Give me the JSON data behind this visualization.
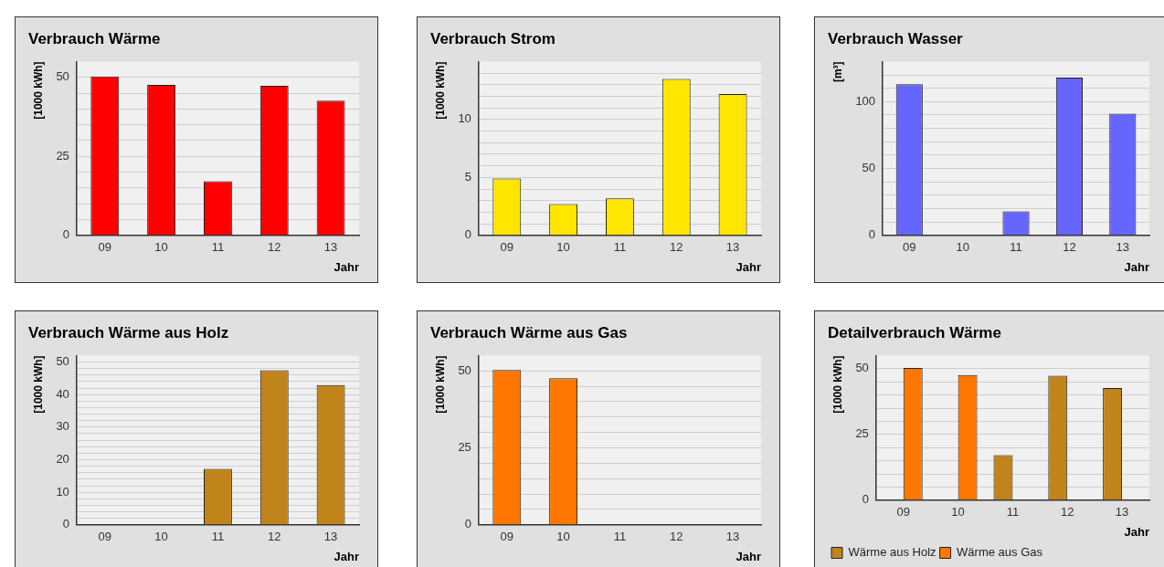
{
  "chart_data": [
    {
      "type": "bar",
      "title": "Verbrauch Wärme",
      "xlabel": "Jahr",
      "ylabel": "[1000 kWh]",
      "categories": [
        "09",
        "10",
        "11",
        "12",
        "13"
      ],
      "values": [
        50.3,
        47.6,
        17.1,
        47.3,
        42.6
      ],
      "color": "#ff0000",
      "ylim": [
        0,
        55
      ],
      "yticks": [
        0,
        {
          "value": 5,
          "label": null
        },
        {
          "value": 10,
          "label": null
        },
        {
          "value": 15,
          "label": null
        },
        {
          "value": 20,
          "label": null
        },
        25,
        {
          "value": 30,
          "label": null
        },
        {
          "value": 35,
          "label": null
        },
        {
          "value": 40,
          "label": null
        },
        {
          "value": 45,
          "label": null
        },
        50
      ],
      "grid": "y"
    },
    {
      "type": "bar",
      "title": "Verbrauch Strom",
      "xlabel": "Jahr",
      "ylabel": "[1000 kWh]",
      "categories": [
        "09",
        "10",
        "11",
        "12",
        "13"
      ],
      "values": [
        4.9,
        2.7,
        3.2,
        13.5,
        12.2
      ],
      "color": "#ffe600",
      "ylim": [
        0,
        15
      ],
      "yticks": [
        0,
        {
          "value": 1,
          "label": null
        },
        {
          "value": 2,
          "label": null
        },
        {
          "value": 3,
          "label": null
        },
        {
          "value": 4,
          "label": null
        },
        5,
        {
          "value": 6,
          "label": null
        },
        {
          "value": 7,
          "label": null
        },
        {
          "value": 8,
          "label": null
        },
        {
          "value": 9,
          "label": null
        },
        10,
        {
          "value": 11,
          "label": null
        },
        {
          "value": 12,
          "label": null
        },
        {
          "value": 13,
          "label": null
        },
        {
          "value": 14,
          "label": null
        }
      ],
      "grid": "y"
    },
    {
      "type": "bar",
      "title": "Verbrauch Wasser",
      "xlabel": "Jahr",
      "ylabel": "[m³]",
      "categories": [
        "09",
        "10",
        "11",
        "12",
        "13"
      ],
      "values": [
        113,
        null,
        18,
        118,
        91
      ],
      "color": "#6666ff",
      "ylim": [
        0,
        130
      ],
      "yticks": [
        0,
        {
          "value": 10,
          "label": null
        },
        {
          "value": 20,
          "label": null
        },
        {
          "value": 30,
          "label": null
        },
        {
          "value": 40,
          "label": null
        },
        50,
        {
          "value": 60,
          "label": null
        },
        {
          "value": 70,
          "label": null
        },
        {
          "value": 80,
          "label": null
        },
        {
          "value": 90,
          "label": null
        },
        100,
        {
          "value": 110,
          "label": null
        },
        {
          "value": 120,
          "label": null
        }
      ],
      "grid": "y"
    },
    {
      "type": "bar",
      "title": "Verbrauch Wärme aus Holz",
      "xlabel": "Jahr",
      "ylabel": "[1000 kWh]",
      "categories": [
        "09",
        "10",
        "11",
        "12",
        "13"
      ],
      "values": [
        null,
        null,
        17.2,
        47.5,
        42.9
      ],
      "color": "#c0841a",
      "ylim": [
        0,
        52
      ],
      "yticks": [
        0,
        {
          "value": 2,
          "label": null
        },
        {
          "value": 4,
          "label": null
        },
        {
          "value": 6,
          "label": null
        },
        {
          "value": 8,
          "label": null
        },
        10,
        {
          "value": 12,
          "label": null
        },
        {
          "value": 14,
          "label": null
        },
        {
          "value": 16,
          "label": null
        },
        {
          "value": 18,
          "label": null
        },
        20,
        {
          "value": 22,
          "label": null
        },
        {
          "value": 24,
          "label": null
        },
        {
          "value": 26,
          "label": null
        },
        {
          "value": 28,
          "label": null
        },
        30,
        {
          "value": 32,
          "label": null
        },
        {
          "value": 34,
          "label": null
        },
        {
          "value": 36,
          "label": null
        },
        {
          "value": 38,
          "label": null
        },
        40,
        {
          "value": 42,
          "label": null
        },
        {
          "value": 44,
          "label": null
        },
        {
          "value": 46,
          "label": null
        },
        {
          "value": 48,
          "label": null
        },
        50
      ],
      "grid": "y"
    },
    {
      "type": "bar",
      "title": "Verbrauch Wärme aus Gas",
      "xlabel": "Jahr",
      "ylabel": "[1000 kWh]",
      "categories": [
        "09",
        "10",
        "11",
        "12",
        "13"
      ],
      "values": [
        50.3,
        47.6,
        null,
        null,
        null
      ],
      "color": "#ff7700",
      "ylim": [
        0,
        55
      ],
      "yticks": [
        0,
        {
          "value": 5,
          "label": null
        },
        {
          "value": 10,
          "label": null
        },
        {
          "value": 15,
          "label": null
        },
        {
          "value": 20,
          "label": null
        },
        25,
        {
          "value": 30,
          "label": null
        },
        {
          "value": 35,
          "label": null
        },
        {
          "value": 40,
          "label": null
        },
        {
          "value": 45,
          "label": null
        },
        50
      ],
      "grid": "y"
    },
    {
      "type": "bar",
      "title": "Detailverbrauch Wärme",
      "xlabel": "Jahr",
      "ylabel": "[1000 kWh]",
      "categories": [
        "09",
        "10",
        "11",
        "12",
        "13"
      ],
      "series": [
        {
          "name": "Wärme aus Holz",
          "color": "#c0841a",
          "values": [
            null,
            null,
            17.1,
            47.3,
            42.6
          ]
        },
        {
          "name": "Wärme aus Gas",
          "color": "#ff7700",
          "values": [
            50.3,
            47.6,
            null,
            null,
            null
          ]
        }
      ],
      "ylim": [
        0,
        55
      ],
      "yticks": [
        0,
        {
          "value": 5,
          "label": null
        },
        {
          "value": 10,
          "label": null
        },
        {
          "value": 15,
          "label": null
        },
        {
          "value": 20,
          "label": null
        },
        25,
        {
          "value": 30,
          "label": null
        },
        {
          "value": 35,
          "label": null
        },
        {
          "value": 40,
          "label": null
        },
        {
          "value": 45,
          "label": null
        },
        50
      ],
      "grid": "y",
      "legend": "bottom left"
    }
  ]
}
